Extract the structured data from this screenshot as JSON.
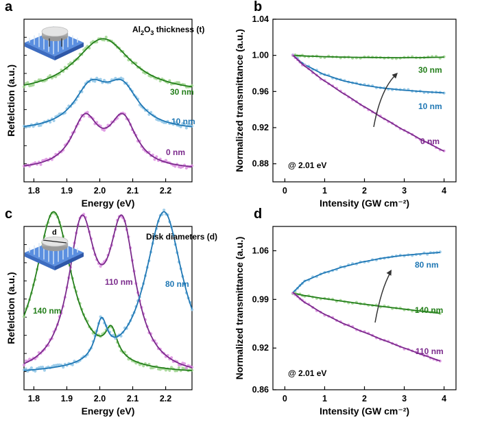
{
  "colors": {
    "green": "#237e1a",
    "blue": "#1f77b4",
    "purple": "#7b2a8c",
    "green_light": "#9fd58f",
    "blue_light": "#8fc6e6",
    "purple_light": "#dc8fe0"
  },
  "chart_data": [
    {
      "panel": "a",
      "type": "line",
      "xlabel": "Energy (eV)",
      "ylabel": "Refelction  (a.u.)",
      "xlim": [
        1.77,
        2.28
      ],
      "ylim": [
        0,
        1
      ],
      "x_ticks": [
        "1.8",
        "1.9",
        "2.0",
        "2.1",
        "2.2"
      ],
      "y_ticks_labeled": false,
      "inset_icon": "disk-on-nanopillar-array-icon",
      "annotation": {
        "base": "Al",
        "sub1": "2",
        "mid": "O",
        "sub2": "3",
        "rest": " thickness (t)"
      },
      "series": [
        {
          "name": "30 nm",
          "color": "green",
          "resonances": [
            [
              2.01,
              1.0,
              0.105
            ]
          ],
          "baseline": 0.54,
          "height": 0.34
        },
        {
          "name": "10 nm",
          "color": "blue",
          "resonances": [
            [
              1.972,
              1.0,
              0.062
            ],
            [
              2.068,
              1.0,
              0.062
            ]
          ],
          "baseline": 0.31,
          "height": 0.32
        },
        {
          "name": "0 nm",
          "color": "purple",
          "resonances": [
            [
              1.955,
              1.0,
              0.05
            ],
            [
              2.07,
              1.0,
              0.05
            ]
          ],
          "baseline": 0.07,
          "height": 0.35
        }
      ]
    },
    {
      "panel": "b",
      "type": "line",
      "xlabel": "Intensity  (GW cm⁻²)",
      "ylabel": "Normalized transmittance  (a.u.)",
      "xlim": [
        -0.3,
        4.3
      ],
      "ylim": [
        0.86,
        1.04
      ],
      "x_ticks": [
        "0",
        "1",
        "2",
        "3",
        "4"
      ],
      "y_ticks": [
        "0.88",
        "0.92",
        "0.96",
        "1.00",
        "1.04"
      ],
      "note": "@ 2.01 eV",
      "series": [
        {
          "name": "30 nm",
          "color": "green",
          "x": [
            0.2,
            0.5,
            1.0,
            1.5,
            2.0,
            2.5,
            3.0,
            3.5,
            4.0
          ],
          "y": [
            1.0,
            0.9993,
            0.9985,
            0.998,
            0.9977,
            0.9975,
            0.9974,
            0.9976,
            0.998
          ]
        },
        {
          "name": "10 nm",
          "color": "blue",
          "x": [
            0.2,
            0.5,
            1.0,
            1.5,
            2.0,
            2.5,
            3.0,
            3.5,
            4.0
          ],
          "y": [
            1.0,
            0.9895,
            0.9785,
            0.9715,
            0.9668,
            0.9636,
            0.9614,
            0.9598,
            0.9585
          ]
        },
        {
          "name": "0 nm",
          "color": "purple",
          "x": [
            0.2,
            0.5,
            1.0,
            1.5,
            2.0,
            2.5,
            3.0,
            3.5,
            4.0
          ],
          "y": [
            1.0,
            0.988,
            0.9715,
            0.957,
            0.943,
            0.9297,
            0.917,
            0.905,
            0.894
          ]
        }
      ]
    },
    {
      "panel": "c",
      "type": "line",
      "xlabel": "Energy (eV)",
      "ylabel": "Refelction  (a.u.)",
      "xlim": [
        1.77,
        2.28
      ],
      "ylim": [
        0,
        1
      ],
      "x_ticks": [
        "1.8",
        "1.9",
        "2.0",
        "2.1",
        "2.2"
      ],
      "y_ticks_labeled": false,
      "inset_icon": "disk-diameter-schematic-icon",
      "inset_text": "d",
      "annotation_text": "Disk diameters (d)",
      "series": [
        {
          "name": "140 nm",
          "color": "green",
          "resonances": [
            [
              1.86,
              0.58,
              0.068
            ],
            [
              2.035,
              0.1,
              0.022
            ]
          ],
          "baseline": 0.09,
          "height": 1.0
        },
        {
          "name": "110 nm",
          "color": "purple",
          "resonances": [
            [
              1.945,
              0.6,
              0.05
            ],
            [
              2.068,
              0.6,
              0.05
            ]
          ],
          "baseline": 0.07,
          "height": 1.0
        },
        {
          "name": "80 nm",
          "color": "blue",
          "resonances": [
            [
              2.195,
              0.6,
              0.07
            ],
            [
              2.005,
              0.14,
              0.022
            ]
          ],
          "baseline": 0.09,
          "height": 1.0
        }
      ]
    },
    {
      "panel": "d",
      "type": "line",
      "xlabel": "Intensity  (GW cm⁻²)",
      "ylabel": "Normalized transmittance  (a.u.)",
      "xlim": [
        -0.3,
        4.3
      ],
      "ylim": [
        0.86,
        1.095
      ],
      "x_ticks": [
        "0",
        "1",
        "2",
        "3",
        "4"
      ],
      "y_ticks": [
        "0.86",
        "0.92",
        "0.99",
        "1.06"
      ],
      "note": "@ 2.01 eV",
      "series": [
        {
          "name": "80 nm",
          "color": "blue",
          "x": [
            0.2,
            0.5,
            1.0,
            1.5,
            2.0,
            2.5,
            3.0,
            3.5,
            3.9
          ],
          "y": [
            1.0,
            1.0165,
            1.0285,
            1.0375,
            1.0445,
            1.0498,
            1.0535,
            1.056,
            1.0575
          ]
        },
        {
          "name": "140 nm",
          "color": "green",
          "x": [
            0.2,
            0.5,
            1.0,
            1.5,
            2.0,
            2.5,
            3.0,
            3.5,
            3.9
          ],
          "y": [
            0.999,
            0.9955,
            0.991,
            0.987,
            0.983,
            0.9795,
            0.976,
            0.9725,
            0.97
          ]
        },
        {
          "name": "110 nm",
          "color": "purple",
          "x": [
            0.2,
            0.5,
            1.0,
            1.5,
            2.0,
            2.5,
            3.0,
            3.5,
            3.9
          ],
          "y": [
            1.0,
            0.9855,
            0.9685,
            0.9545,
            0.9425,
            0.931,
            0.92,
            0.9095,
            0.9015
          ]
        }
      ]
    }
  ]
}
